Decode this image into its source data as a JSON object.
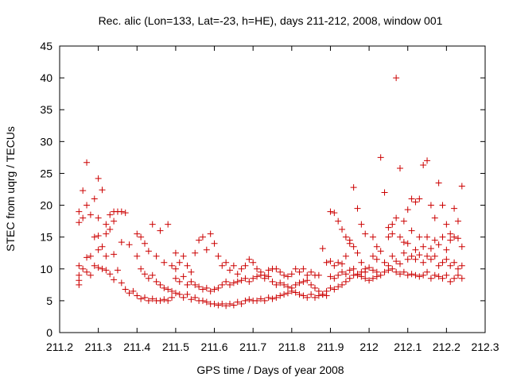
{
  "chart_data": {
    "type": "scatter",
    "title": "Rec. alic (Lon=133, Lat=-23, h=HE), days 211-212, 2008, window 001",
    "xlabel": "GPS time / Days of year 2008",
    "ylabel": "STEC from uqrg / TECUs",
    "xlim": [
      211.2,
      212.3
    ],
    "ylim": [
      0,
      45
    ],
    "xticks": [
      "211.2",
      "211.3",
      "211.4",
      "211.5",
      "211.6",
      "211.7",
      "211.8",
      "211.9",
      "212",
      "212.1",
      "212.2",
      "212.3"
    ],
    "yticks": [
      "0",
      "5",
      "10",
      "15",
      "20",
      "25",
      "30",
      "35",
      "40",
      "45"
    ],
    "grid": false,
    "legend": "none",
    "marker": "+",
    "color": "#cc0000",
    "points": [
      [
        211.25,
        19.0
      ],
      [
        211.25,
        17.3
      ],
      [
        211.26,
        22.3
      ],
      [
        211.26,
        18.0
      ],
      [
        211.27,
        26.7
      ],
      [
        211.27,
        20.0
      ],
      [
        211.28,
        18.5
      ],
      [
        211.29,
        21.0
      ],
      [
        211.3,
        24.2
      ],
      [
        211.3,
        18.0
      ],
      [
        211.31,
        22.4
      ],
      [
        211.32,
        17.0
      ],
      [
        211.33,
        18.5
      ],
      [
        211.34,
        19.0
      ],
      [
        211.35,
        19.0
      ],
      [
        211.36,
        19.0
      ],
      [
        211.37,
        18.8
      ],
      [
        211.34,
        17.5
      ],
      [
        211.33,
        16.2
      ],
      [
        211.32,
        15.5
      ],
      [
        211.3,
        15.2
      ],
      [
        211.29,
        15.0
      ],
      [
        211.31,
        13.5
      ],
      [
        211.28,
        12.0
      ],
      [
        211.27,
        11.8
      ],
      [
        211.3,
        13.0
      ],
      [
        211.32,
        12.0
      ],
      [
        211.34,
        12.3
      ],
      [
        211.36,
        14.2
      ],
      [
        211.38,
        13.8
      ],
      [
        211.25,
        10.5
      ],
      [
        211.25,
        9.0
      ],
      [
        211.25,
        8.2
      ],
      [
        211.25,
        7.5
      ],
      [
        211.26,
        10.0
      ],
      [
        211.27,
        9.5
      ],
      [
        211.28,
        9.0
      ],
      [
        211.29,
        10.5
      ],
      [
        211.3,
        10.2
      ],
      [
        211.31,
        10.0
      ],
      [
        211.32,
        9.8
      ],
      [
        211.33,
        9.2
      ],
      [
        211.34,
        8.3
      ],
      [
        211.35,
        9.8
      ],
      [
        211.36,
        7.8
      ],
      [
        211.37,
        6.8
      ],
      [
        211.38,
        6.2
      ],
      [
        211.39,
        6.5
      ],
      [
        211.4,
        5.8
      ],
      [
        211.41,
        5.3
      ],
      [
        211.42,
        5.5
      ],
      [
        211.43,
        5.0
      ],
      [
        211.44,
        5.3
      ],
      [
        211.45,
        5.0
      ],
      [
        211.46,
        5.0
      ],
      [
        211.47,
        5.2
      ],
      [
        211.48,
        5.0
      ],
      [
        211.49,
        5.5
      ],
      [
        211.4,
        15.5
      ],
      [
        211.41,
        15.0
      ],
      [
        211.42,
        14.0
      ],
      [
        211.43,
        12.8
      ],
      [
        211.44,
        17.0
      ],
      [
        211.45,
        12.0
      ],
      [
        211.46,
        16.0
      ],
      [
        211.47,
        11.0
      ],
      [
        211.48,
        17.0
      ],
      [
        211.49,
        10.5
      ],
      [
        211.5,
        10.0
      ],
      [
        211.4,
        12.0
      ],
      [
        211.41,
        10.0
      ],
      [
        211.42,
        9.2
      ],
      [
        211.43,
        8.5
      ],
      [
        211.44,
        9.0
      ],
      [
        211.45,
        8.0
      ],
      [
        211.46,
        7.5
      ],
      [
        211.47,
        7.0
      ],
      [
        211.48,
        6.8
      ],
      [
        211.49,
        6.5
      ],
      [
        211.5,
        6.2
      ],
      [
        211.51,
        6.0
      ],
      [
        211.52,
        5.5
      ],
      [
        211.53,
        6.0
      ],
      [
        211.54,
        5.2
      ],
      [
        211.55,
        5.5
      ],
      [
        211.56,
        5.0
      ],
      [
        211.57,
        5.0
      ],
      [
        211.58,
        4.8
      ],
      [
        211.59,
        4.5
      ],
      [
        211.6,
        4.5
      ],
      [
        211.61,
        4.3
      ],
      [
        211.62,
        4.5
      ],
      [
        211.63,
        4.2
      ],
      [
        211.64,
        4.5
      ],
      [
        211.65,
        4.3
      ],
      [
        211.66,
        4.8
      ],
      [
        211.67,
        4.5
      ],
      [
        211.68,
        5.0
      ],
      [
        211.69,
        5.2
      ],
      [
        211.7,
        5.0
      ],
      [
        211.71,
        5.0
      ],
      [
        211.72,
        5.3
      ],
      [
        211.73,
        5.0
      ],
      [
        211.74,
        5.5
      ],
      [
        211.75,
        5.3
      ],
      [
        211.76,
        5.5
      ],
      [
        211.77,
        5.8
      ],
      [
        211.78,
        6.0
      ],
      [
        211.79,
        6.2
      ],
      [
        211.8,
        6.5
      ],
      [
        211.81,
        6.3
      ],
      [
        211.82,
        6.0
      ],
      [
        211.83,
        5.8
      ],
      [
        211.84,
        5.5
      ],
      [
        211.85,
        6.0
      ],
      [
        211.86,
        5.5
      ],
      [
        211.87,
        5.8
      ],
      [
        211.88,
        6.0
      ],
      [
        211.89,
        6.5
      ],
      [
        211.9,
        7.0
      ],
      [
        211.91,
        6.8
      ],
      [
        211.92,
        7.2
      ],
      [
        211.93,
        7.5
      ],
      [
        211.94,
        8.0
      ],
      [
        211.95,
        8.5
      ],
      [
        211.96,
        9.0
      ],
      [
        211.97,
        9.2
      ],
      [
        211.98,
        9.5
      ],
      [
        211.99,
        10.0
      ],
      [
        212.0,
        10.2
      ],
      [
        211.5,
        12.5
      ],
      [
        211.51,
        11.0
      ],
      [
        211.52,
        12.0
      ],
      [
        211.53,
        10.5
      ],
      [
        211.54,
        9.5
      ],
      [
        211.55,
        12.5
      ],
      [
        211.56,
        14.5
      ],
      [
        211.57,
        15.0
      ],
      [
        211.58,
        13.0
      ],
      [
        211.59,
        15.5
      ],
      [
        211.6,
        14.0
      ],
      [
        211.61,
        12.0
      ],
      [
        211.62,
        10.5
      ],
      [
        211.63,
        11.0
      ],
      [
        211.64,
        9.8
      ],
      [
        211.65,
        10.5
      ],
      [
        211.66,
        9.2
      ],
      [
        211.67,
        10.0
      ],
      [
        211.68,
        10.5
      ],
      [
        211.69,
        11.5
      ],
      [
        211.7,
        11.0
      ],
      [
        211.71,
        10.0
      ],
      [
        211.72,
        9.5
      ],
      [
        211.73,
        9.0
      ],
      [
        211.74,
        9.8
      ],
      [
        211.75,
        10.0
      ],
      [
        211.76,
        10.0
      ],
      [
        211.77,
        9.5
      ],
      [
        211.78,
        9.0
      ],
      [
        211.79,
        8.8
      ],
      [
        211.8,
        9.2
      ],
      [
        211.81,
        10.0
      ],
      [
        211.82,
        9.5
      ],
      [
        211.83,
        10.0
      ],
      [
        211.84,
        9.0
      ],
      [
        211.85,
        9.5
      ],
      [
        211.86,
        9.0
      ],
      [
        211.87,
        9.0
      ],
      [
        211.88,
        13.2
      ],
      [
        211.89,
        11.0
      ],
      [
        211.5,
        8.5
      ],
      [
        211.51,
        8.0
      ],
      [
        211.52,
        8.8
      ],
      [
        211.53,
        7.5
      ],
      [
        211.54,
        8.0
      ],
      [
        211.55,
        7.5
      ],
      [
        211.56,
        7.2
      ],
      [
        211.57,
        6.8
      ],
      [
        211.58,
        7.0
      ],
      [
        211.59,
        6.5
      ],
      [
        211.6,
        6.8
      ],
      [
        211.61,
        7.0
      ],
      [
        211.62,
        7.5
      ],
      [
        211.63,
        8.0
      ],
      [
        211.64,
        7.5
      ],
      [
        211.65,
        7.8
      ],
      [
        211.66,
        8.0
      ],
      [
        211.67,
        8.2
      ],
      [
        211.68,
        8.5
      ],
      [
        211.69,
        8.0
      ],
      [
        211.7,
        8.5
      ],
      [
        211.71,
        8.8
      ],
      [
        211.72,
        9.0
      ],
      [
        211.73,
        8.5
      ],
      [
        211.74,
        8.8
      ],
      [
        211.75,
        8.0
      ],
      [
        211.76,
        7.5
      ],
      [
        211.77,
        7.8
      ],
      [
        211.78,
        7.5
      ],
      [
        211.79,
        7.2
      ],
      [
        211.8,
        7.0
      ],
      [
        211.81,
        7.5
      ],
      [
        211.82,
        7.8
      ],
      [
        211.83,
        8.0
      ],
      [
        211.84,
        8.2
      ],
      [
        211.85,
        7.5
      ],
      [
        211.86,
        7.0
      ],
      [
        211.87,
        6.5
      ],
      [
        211.88,
        6.0
      ],
      [
        211.89,
        5.8
      ],
      [
        211.9,
        19.0
      ],
      [
        211.91,
        18.8
      ],
      [
        211.92,
        17.5
      ],
      [
        211.93,
        16.2
      ],
      [
        211.94,
        15.0
      ],
      [
        211.95,
        14.5
      ],
      [
        211.96,
        22.8
      ],
      [
        211.97,
        19.5
      ],
      [
        211.98,
        17.0
      ],
      [
        211.99,
        15.5
      ],
      [
        211.9,
        11.2
      ],
      [
        211.91,
        10.5
      ],
      [
        211.92,
        11.0
      ],
      [
        211.93,
        10.8
      ],
      [
        211.94,
        12.0
      ],
      [
        211.95,
        14.0
      ],
      [
        211.96,
        13.5
      ],
      [
        211.97,
        12.5
      ],
      [
        211.98,
        11.0
      ],
      [
        211.99,
        9.5
      ],
      [
        211.9,
        8.8
      ],
      [
        211.91,
        8.5
      ],
      [
        211.92,
        9.0
      ],
      [
        211.93,
        9.5
      ],
      [
        211.94,
        9.2
      ],
      [
        211.95,
        9.8
      ],
      [
        211.96,
        10.0
      ],
      [
        211.97,
        9.0
      ],
      [
        211.98,
        8.8
      ],
      [
        211.99,
        8.5
      ],
      [
        212.01,
        15.0
      ],
      [
        212.02,
        13.5
      ],
      [
        212.03,
        27.5
      ],
      [
        212.04,
        22.0
      ],
      [
        212.05,
        16.5
      ],
      [
        212.06,
        17.0
      ],
      [
        212.07,
        40.0
      ],
      [
        212.08,
        25.8
      ],
      [
        212.09,
        17.5
      ],
      [
        212.1,
        19.3
      ],
      [
        212.11,
        21.0
      ],
      [
        212.12,
        20.5
      ],
      [
        212.13,
        21.0
      ],
      [
        212.14,
        26.3
      ],
      [
        212.15,
        27.0
      ],
      [
        212.16,
        20.0
      ],
      [
        212.17,
        18.0
      ],
      [
        212.18,
        23.5
      ],
      [
        212.19,
        20.0
      ],
      [
        212.2,
        17.0
      ],
      [
        212.21,
        15.5
      ],
      [
        212.22,
        19.5
      ],
      [
        212.23,
        17.5
      ],
      [
        212.24,
        23.0
      ],
      [
        212.05,
        15.0
      ],
      [
        212.06,
        15.5
      ],
      [
        212.07,
        18.0
      ],
      [
        212.08,
        15.0
      ],
      [
        212.09,
        14.2
      ],
      [
        212.1,
        14.0
      ],
      [
        212.11,
        16.0
      ],
      [
        212.12,
        13.0
      ],
      [
        212.13,
        15.0
      ],
      [
        212.14,
        13.5
      ],
      [
        212.15,
        15.0
      ],
      [
        212.16,
        13.2
      ],
      [
        212.17,
        14.5
      ],
      [
        212.18,
        13.8
      ],
      [
        212.19,
        15.0
      ],
      [
        212.2,
        13.0
      ],
      [
        212.21,
        14.5
      ],
      [
        212.22,
        15.0
      ],
      [
        212.23,
        14.8
      ],
      [
        212.24,
        13.5
      ],
      [
        212.01,
        12.0
      ],
      [
        212.02,
        11.5
      ],
      [
        212.03,
        12.8
      ],
      [
        212.04,
        11.0
      ],
      [
        212.05,
        10.5
      ],
      [
        212.06,
        12.0
      ],
      [
        212.07,
        11.2
      ],
      [
        212.08,
        10.8
      ],
      [
        212.09,
        12.5
      ],
      [
        212.1,
        11.5
      ],
      [
        212.11,
        12.0
      ],
      [
        212.12,
        11.5
      ],
      [
        212.13,
        12.2
      ],
      [
        212.14,
        11.0
      ],
      [
        212.15,
        12.0
      ],
      [
        212.16,
        11.5
      ],
      [
        212.17,
        12.0
      ],
      [
        212.18,
        10.5
      ],
      [
        212.19,
        11.0
      ],
      [
        212.2,
        11.5
      ],
      [
        212.21,
        10.5
      ],
      [
        212.22,
        11.0
      ],
      [
        212.23,
        10.0
      ],
      [
        212.24,
        10.5
      ],
      [
        212.01,
        9.8
      ],
      [
        212.02,
        9.5
      ],
      [
        212.03,
        9.0
      ],
      [
        212.04,
        9.5
      ],
      [
        212.05,
        9.8
      ],
      [
        212.06,
        10.0
      ],
      [
        212.07,
        9.5
      ],
      [
        212.08,
        9.2
      ],
      [
        212.09,
        9.5
      ],
      [
        212.1,
        9.0
      ],
      [
        212.11,
        9.2
      ],
      [
        212.12,
        9.0
      ],
      [
        212.13,
        8.8
      ],
      [
        212.14,
        9.0
      ],
      [
        212.15,
        9.5
      ],
      [
        212.16,
        8.5
      ],
      [
        212.17,
        9.0
      ],
      [
        212.18,
        8.8
      ],
      [
        212.19,
        8.5
      ],
      [
        212.2,
        9.0
      ],
      [
        212.21,
        8.0
      ],
      [
        212.22,
        8.5
      ],
      [
        212.23,
        9.0
      ],
      [
        212.24,
        8.5
      ],
      [
        212.0,
        8.2
      ],
      [
        212.01,
        8.5
      ],
      [
        212.02,
        8.8
      ]
    ]
  }
}
